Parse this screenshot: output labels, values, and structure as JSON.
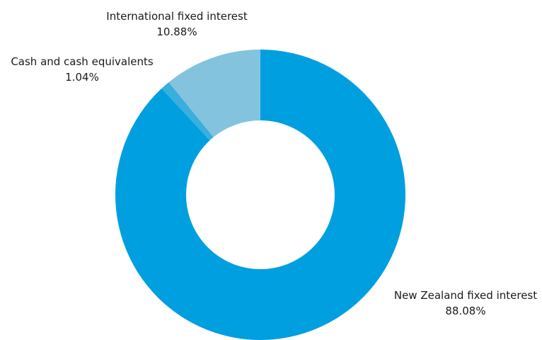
{
  "chart_data": {
    "type": "pie",
    "variant": "donut",
    "title": "",
    "slices": [
      {
        "label": "New Zealand fixed interest",
        "value": 88.08,
        "value_label": "88.08%",
        "color": "#009FDF"
      },
      {
        "label": "Cash and cash equivalents",
        "value": 1.04,
        "value_label": "1.04%",
        "color": "#3AAEDD"
      },
      {
        "label": "International fixed interest",
        "value": 10.88,
        "value_label": "10.88%",
        "color": "#83C3DE"
      }
    ],
    "start": "12 o'clock",
    "direction": "clockwise",
    "legend": "none",
    "labels": "outside"
  }
}
